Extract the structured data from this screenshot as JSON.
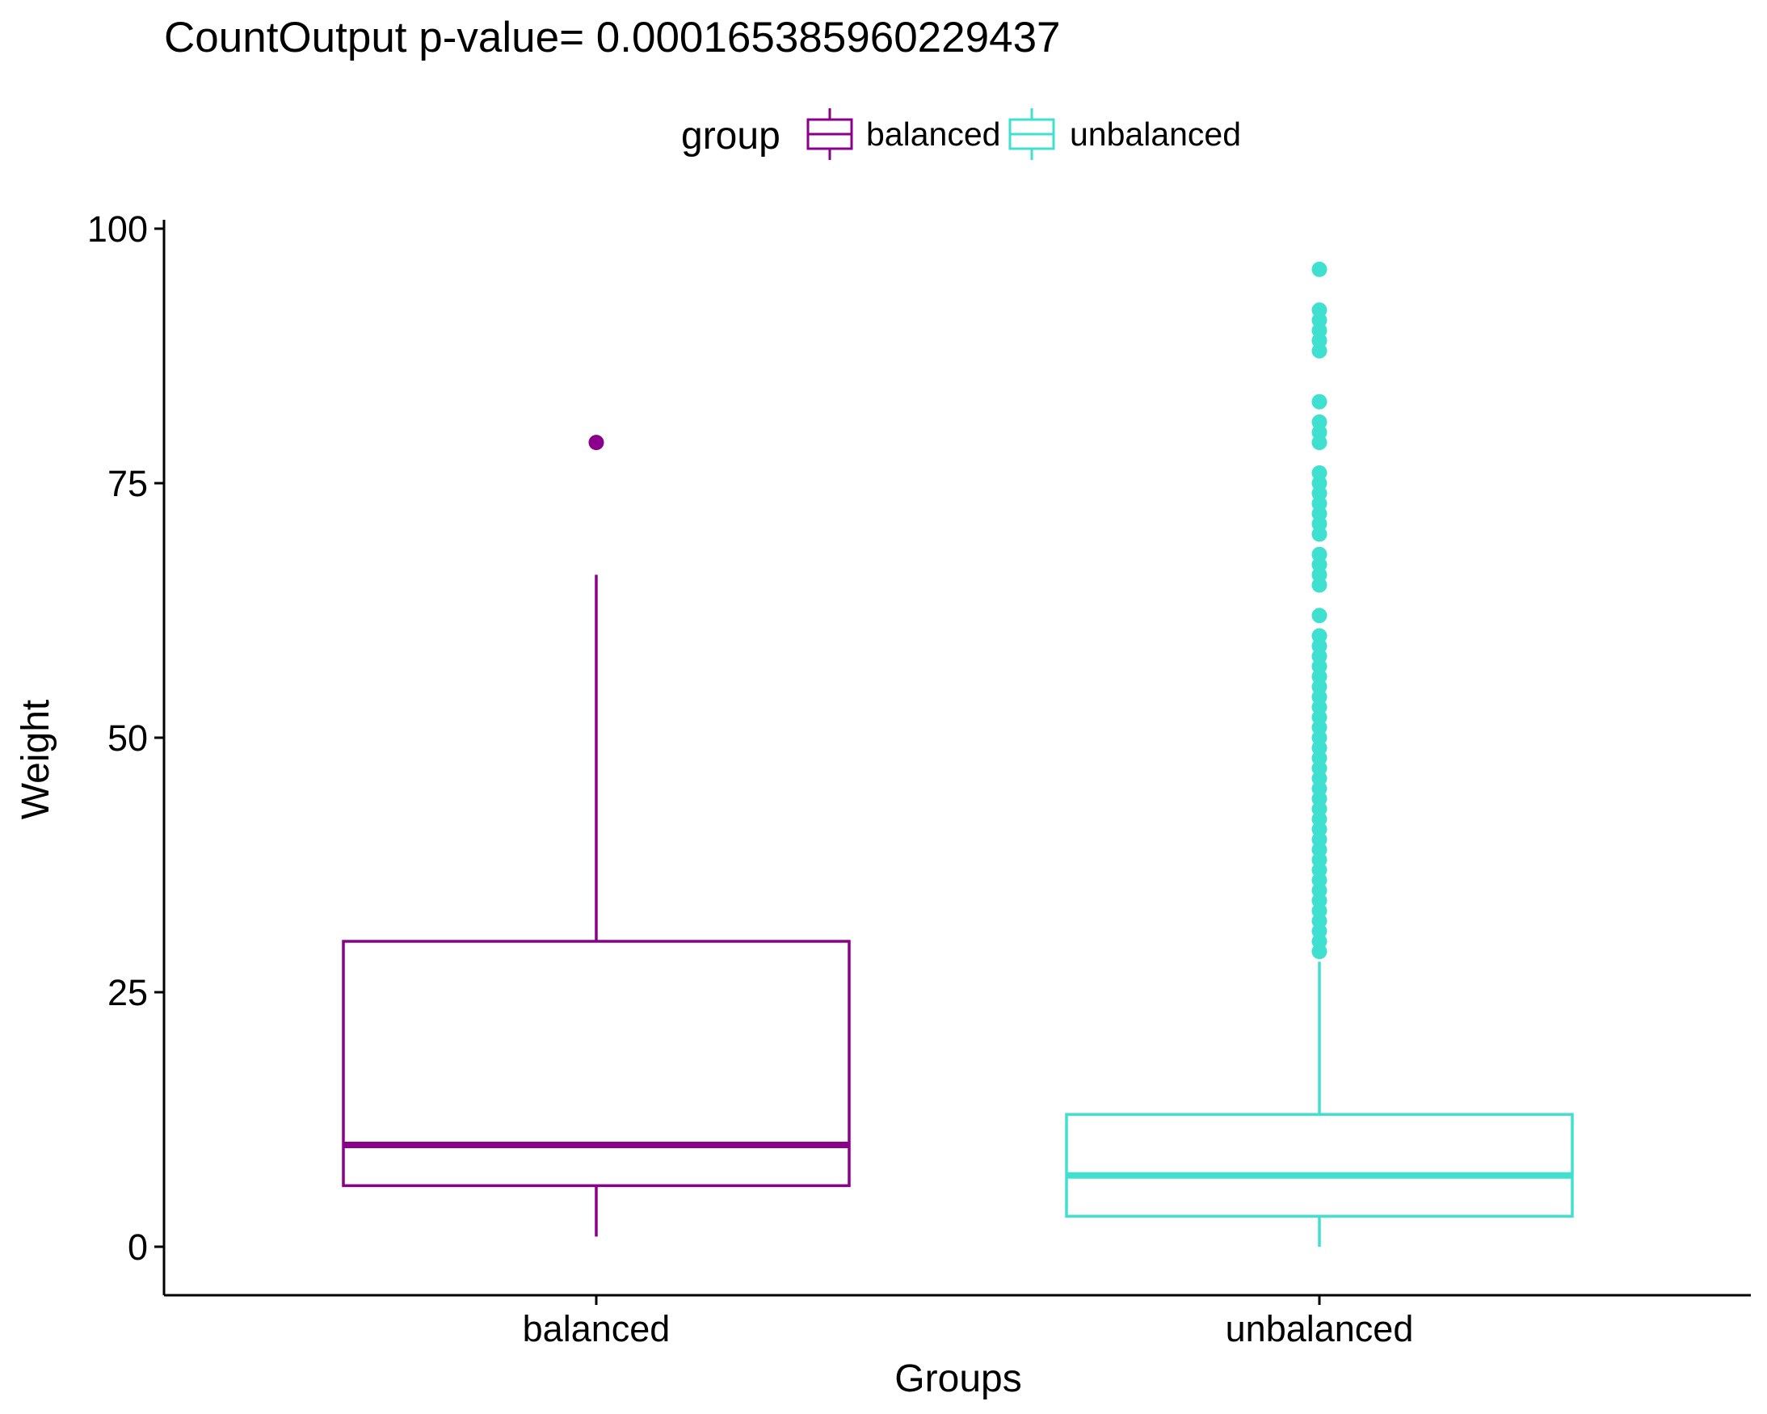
{
  "chart_data": {
    "type": "boxplot",
    "title": "CountOutput  p-value= 0.000165385960229437",
    "xlabel": "Groups",
    "ylabel": "Weight",
    "ylim": [
      -2,
      103
    ],
    "yticks": [
      0,
      25,
      50,
      75,
      100
    ],
    "categories": [
      "balanced",
      "unbalanced"
    ],
    "grid": false,
    "legend": {
      "title": "group",
      "position": "top",
      "entries": [
        "balanced",
        "unbalanced"
      ]
    },
    "series": [
      {
        "name": "balanced",
        "color": "#8B008B",
        "whisker_low": 1,
        "q1": 6,
        "median": 10,
        "q3": 30,
        "whisker_high": 66,
        "outliers": [
          79
        ]
      },
      {
        "name": "unbalanced",
        "color": "#40E0D0",
        "whisker_low": 0,
        "q1": 3,
        "median": 7,
        "q3": 13,
        "whisker_high": 28,
        "outliers": [
          29,
          30,
          31,
          32,
          33,
          34,
          35,
          36,
          37,
          38,
          39,
          40,
          41,
          42,
          43,
          44,
          45,
          46,
          47,
          48,
          49,
          50,
          51,
          52,
          53,
          54,
          55,
          56,
          57,
          58,
          59,
          60,
          62,
          65,
          66,
          67,
          68,
          70,
          71,
          72,
          73,
          74,
          75,
          76,
          79,
          80,
          81,
          83,
          88,
          89,
          90,
          91,
          92,
          96
        ]
      }
    ]
  }
}
